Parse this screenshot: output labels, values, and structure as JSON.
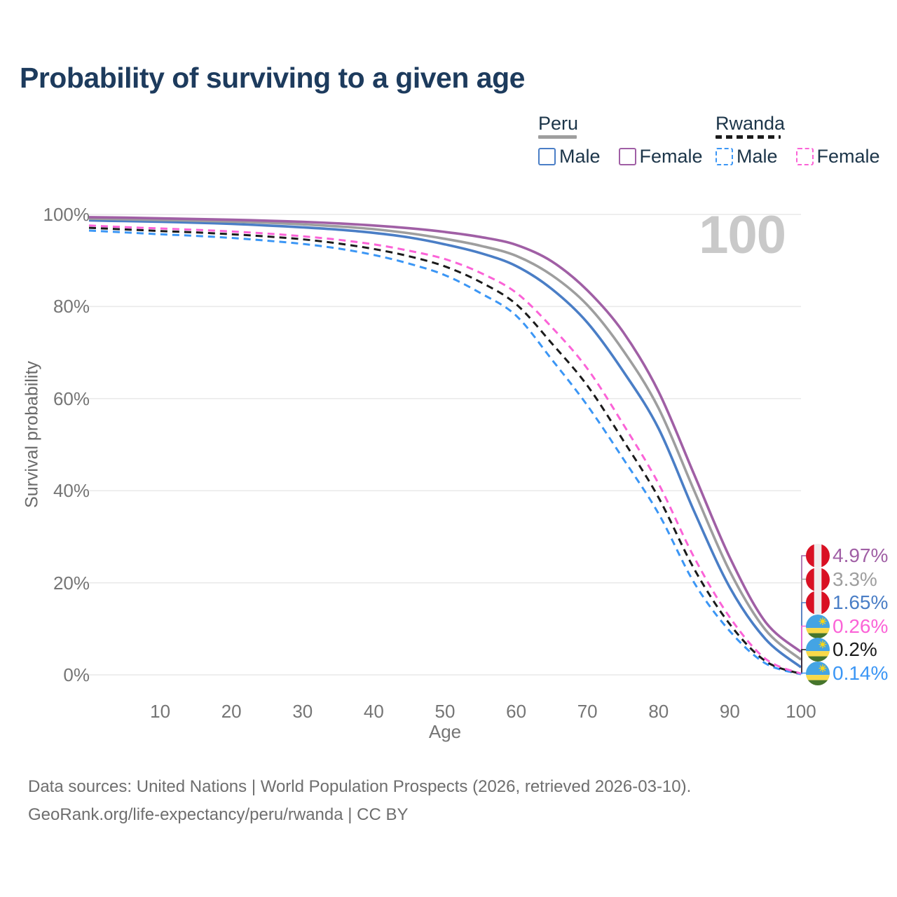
{
  "title": "Probability of surviving to a given age",
  "age_counter": "100",
  "legend": {
    "peru": {
      "title": "Peru",
      "male": "Male",
      "female": "Female"
    },
    "rwanda": {
      "title": "Rwanda",
      "male": "Male",
      "female": "Female"
    }
  },
  "footer": {
    "line1": "Data sources: United Nations | World Population Prospects (2026, retrieved 2026-03-10).",
    "line2": "GeoRank.org/life-expectancy/peru/rwanda | CC BY"
  },
  "colors": {
    "title_text": "#1d3b5d",
    "legend_text": "#1c3549",
    "axis_text": "#757575",
    "grid_line": "#e9e9e9",
    "watermark": "#c9c9c9",
    "footer_text": "#6e6e6e"
  },
  "chart_data": {
    "type": "line",
    "title": "Probability of surviving to a given age",
    "xlabel": "Age",
    "ylabel": "Survival probability",
    "xlim": [
      0,
      100
    ],
    "ylim": [
      0,
      100
    ],
    "grid": "horizontal",
    "legend_position": "top-right",
    "x_tick_values": [
      10,
      20,
      30,
      40,
      50,
      60,
      70,
      80,
      90,
      100
    ],
    "x_tick_labels": [
      "10",
      "20",
      "30",
      "40",
      "50",
      "60",
      "70",
      "80",
      "90",
      "100"
    ],
    "y_ticks": [
      {
        "label": "0%",
        "value": 0
      },
      {
        "label": "20%",
        "value": 20
      },
      {
        "label": "40%",
        "value": 40
      },
      {
        "label": "60%",
        "value": 60
      },
      {
        "label": "80%",
        "value": 80
      },
      {
        "label": "100%",
        "value": 100
      }
    ],
    "x": [
      0,
      5,
      10,
      15,
      20,
      25,
      30,
      35,
      40,
      45,
      50,
      55,
      60,
      65,
      70,
      75,
      80,
      85,
      90,
      95,
      100
    ],
    "series": [
      {
        "name": "Peru Female",
        "country": "Peru",
        "sex": "Female",
        "color": "#a05fa5",
        "dashed": false,
        "flag": "peru",
        "end_label": "4.97%",
        "end_value": 4.97,
        "values": [
          99.4,
          99.3,
          99.15,
          99.0,
          98.85,
          98.65,
          98.4,
          98.05,
          97.6,
          97.0,
          96.2,
          95.1,
          93.4,
          89.8,
          83.5,
          74.5,
          61.5,
          43.5,
          25.5,
          11.5,
          4.97
        ]
      },
      {
        "name": "Peru",
        "country": "Peru",
        "sex": "Both",
        "color": "#9e9e9e",
        "dashed": false,
        "flag": "peru",
        "end_label": "3.3%",
        "end_value": 3.3,
        "values": [
          99.1,
          98.95,
          98.8,
          98.65,
          98.45,
          98.2,
          97.85,
          97.4,
          96.8,
          95.9,
          94.7,
          93.2,
          91.0,
          86.8,
          80.3,
          70.5,
          57.9,
          40.0,
          22.5,
          9.8,
          3.3
        ]
      },
      {
        "name": "Peru Male",
        "country": "Peru",
        "sex": "Male",
        "color": "#4a7ec6",
        "dashed": false,
        "flag": "peru",
        "end_label": "1.65%",
        "end_value": 1.65,
        "values": [
          98.7,
          98.55,
          98.4,
          98.2,
          97.95,
          97.6,
          97.2,
          96.7,
          96.0,
          95.0,
          93.5,
          91.6,
          88.8,
          83.8,
          76.5,
          66.0,
          53.5,
          35.5,
          19.0,
          7.8,
          1.65
        ]
      },
      {
        "name": "Rwanda Female",
        "country": "Rwanda",
        "sex": "Female",
        "color": "#fb63d7",
        "dashed": true,
        "flag": "rwanda",
        "end_label": "0.26%",
        "end_value": 0.26,
        "values": [
          97.6,
          97.25,
          96.95,
          96.65,
          96.3,
          95.85,
          95.25,
          94.5,
          93.5,
          92.1,
          90.3,
          87.3,
          83.0,
          75.5,
          66.5,
          54.5,
          41.5,
          25.5,
          12.5,
          3.5,
          0.26
        ]
      },
      {
        "name": "Rwanda",
        "country": "Rwanda",
        "sex": "Both",
        "color": "#1b1b1b",
        "dashed": true,
        "flag": "rwanda",
        "end_label": "0.2%",
        "end_value": 0.2,
        "values": [
          97.1,
          96.75,
          96.4,
          96.1,
          95.7,
          95.2,
          94.6,
          93.7,
          92.5,
          90.9,
          88.7,
          85.3,
          80.5,
          72.0,
          62.8,
          51.0,
          38.5,
          23.0,
          11.0,
          3.0,
          0.2
        ]
      },
      {
        "name": "Rwanda Male",
        "country": "Rwanda",
        "sex": "Male",
        "color": "#3b96f5",
        "dashed": true,
        "flag": "rwanda",
        "end_label": "0.14%",
        "end_value": 0.14,
        "values": [
          96.5,
          96.1,
          95.7,
          95.35,
          94.9,
          94.3,
          93.6,
          92.6,
          91.2,
          89.3,
          86.8,
          82.9,
          78.0,
          68.5,
          58.5,
          47.0,
          35.0,
          20.0,
          9.5,
          2.5,
          0.14
        ]
      }
    ]
  }
}
